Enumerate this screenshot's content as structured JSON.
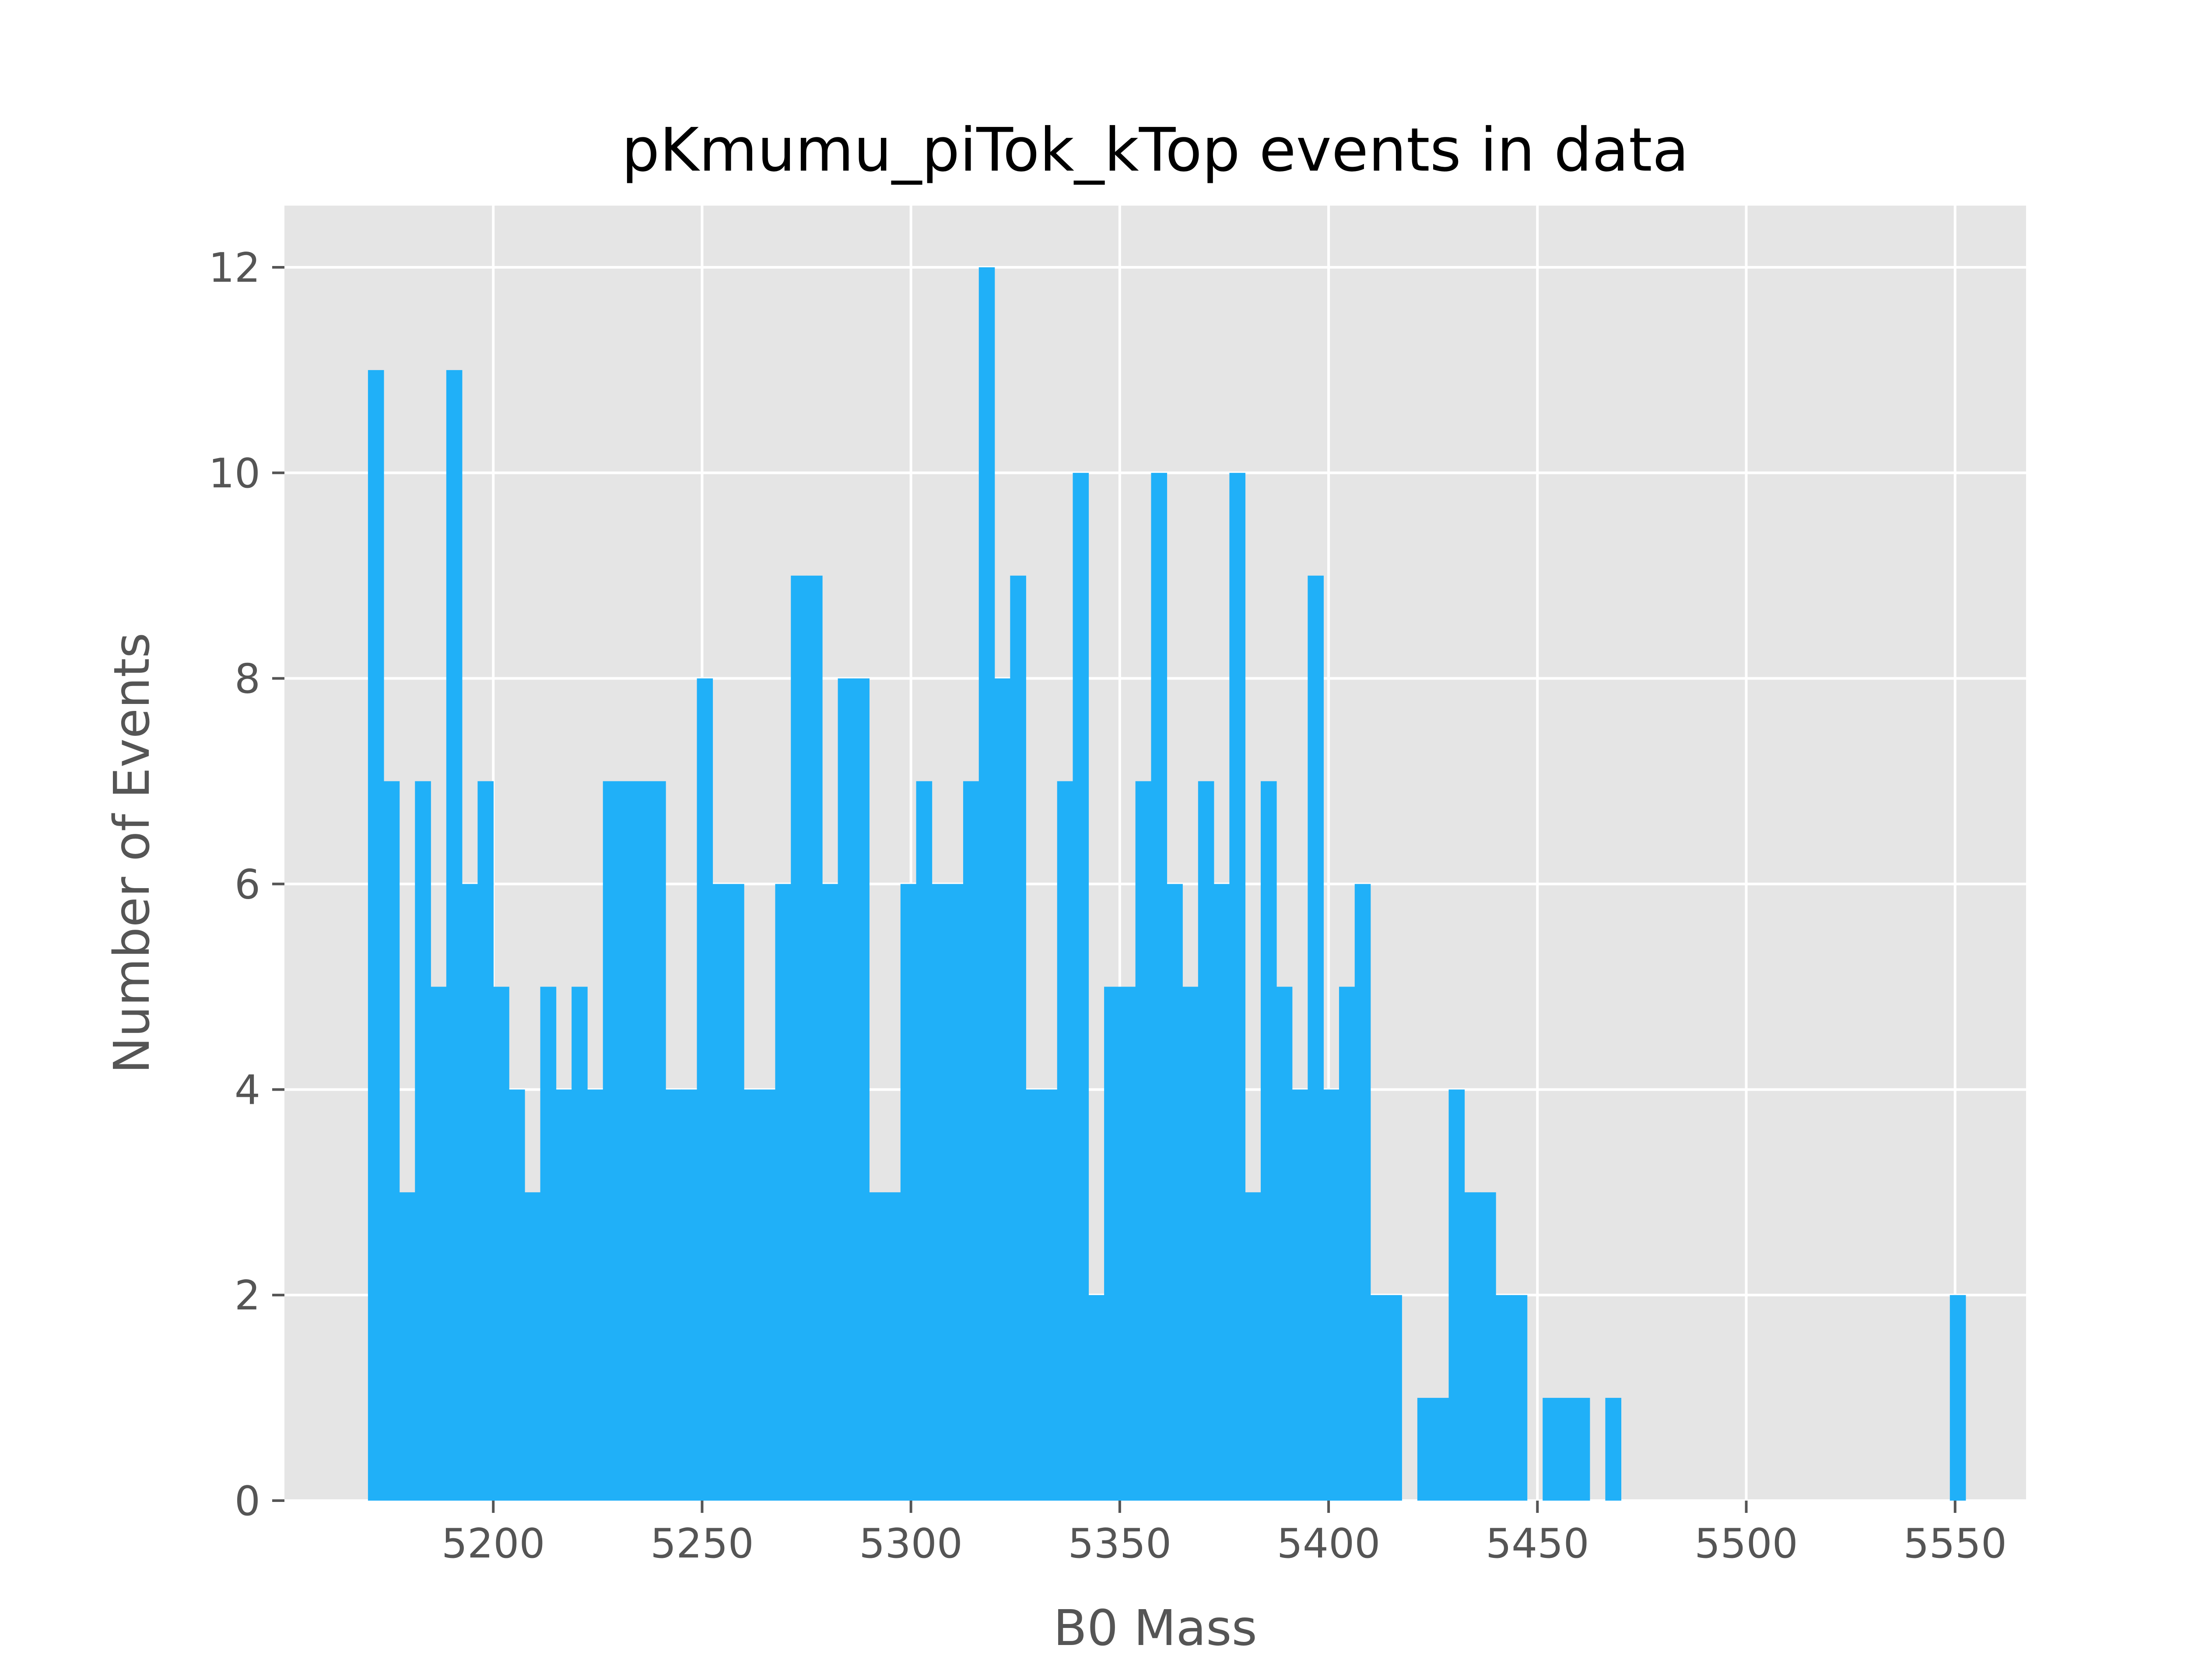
{
  "chart_data": {
    "type": "bar",
    "title": "pKmumu_piTok_kTop events in data",
    "xlabel": "B0 Mass",
    "ylabel": "Number of Events",
    "xlim": [
      5150,
      5567
    ],
    "ylim": [
      0,
      12.6
    ],
    "xticks": [
      5200,
      5250,
      5300,
      5350,
      5400,
      5450,
      5500,
      5550
    ],
    "yticks": [
      0,
      2,
      4,
      6,
      8,
      10,
      12
    ],
    "grid": true,
    "bar_color": "#20b0f8",
    "bin_start": 5170,
    "bin_width": 3.75,
    "counts": [
      11,
      7,
      3,
      7,
      5,
      11,
      6,
      7,
      5,
      4,
      3,
      5,
      4,
      5,
      4,
      7,
      7,
      7,
      7,
      4,
      4,
      8,
      6,
      6,
      4,
      4,
      6,
      9,
      9,
      6,
      8,
      8,
      3,
      3,
      6,
      7,
      6,
      6,
      7,
      12,
      8,
      9,
      4,
      4,
      7,
      10,
      2,
      5,
      5,
      7,
      10,
      6,
      5,
      7,
      6,
      10,
      3,
      7,
      5,
      4,
      9,
      4,
      5,
      6,
      2,
      2,
      0,
      1,
      1,
      4,
      3,
      3,
      2,
      2,
      0,
      1,
      1,
      1,
      0,
      1,
      0,
      0,
      0,
      0,
      0,
      0,
      0,
      0,
      0,
      0,
      0,
      0,
      0,
      0,
      0,
      0,
      0,
      0,
      0,
      0,
      0,
      2,
      0
    ]
  },
  "colors": {
    "plot_background": "#e5e5e5",
    "grid": "#ffffff",
    "bars": "#20b0f8",
    "text": "#555555"
  }
}
